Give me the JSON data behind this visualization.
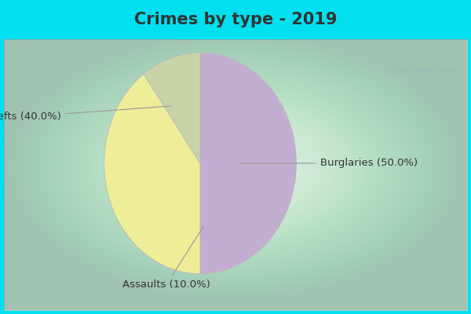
{
  "title": "Crimes by type - 2019",
  "slices": [
    {
      "label": "Burglaries",
      "pct": 50.0,
      "color": "#c2aed0"
    },
    {
      "label": "Thefts",
      "pct": 40.0,
      "color": "#eeee99"
    },
    {
      "label": "Assaults",
      "pct": 10.0,
      "color": "#c8d4a8"
    }
  ],
  "background_border": "#00e0f0",
  "background_inner": "#d8ede4",
  "title_fontsize": 15,
  "label_fontsize": 9.5,
  "watermark": "City-Data.com",
  "wedge_edge_color": "#bbbbbb",
  "wedge_linewidth": 0.7,
  "title_color": "#333333"
}
